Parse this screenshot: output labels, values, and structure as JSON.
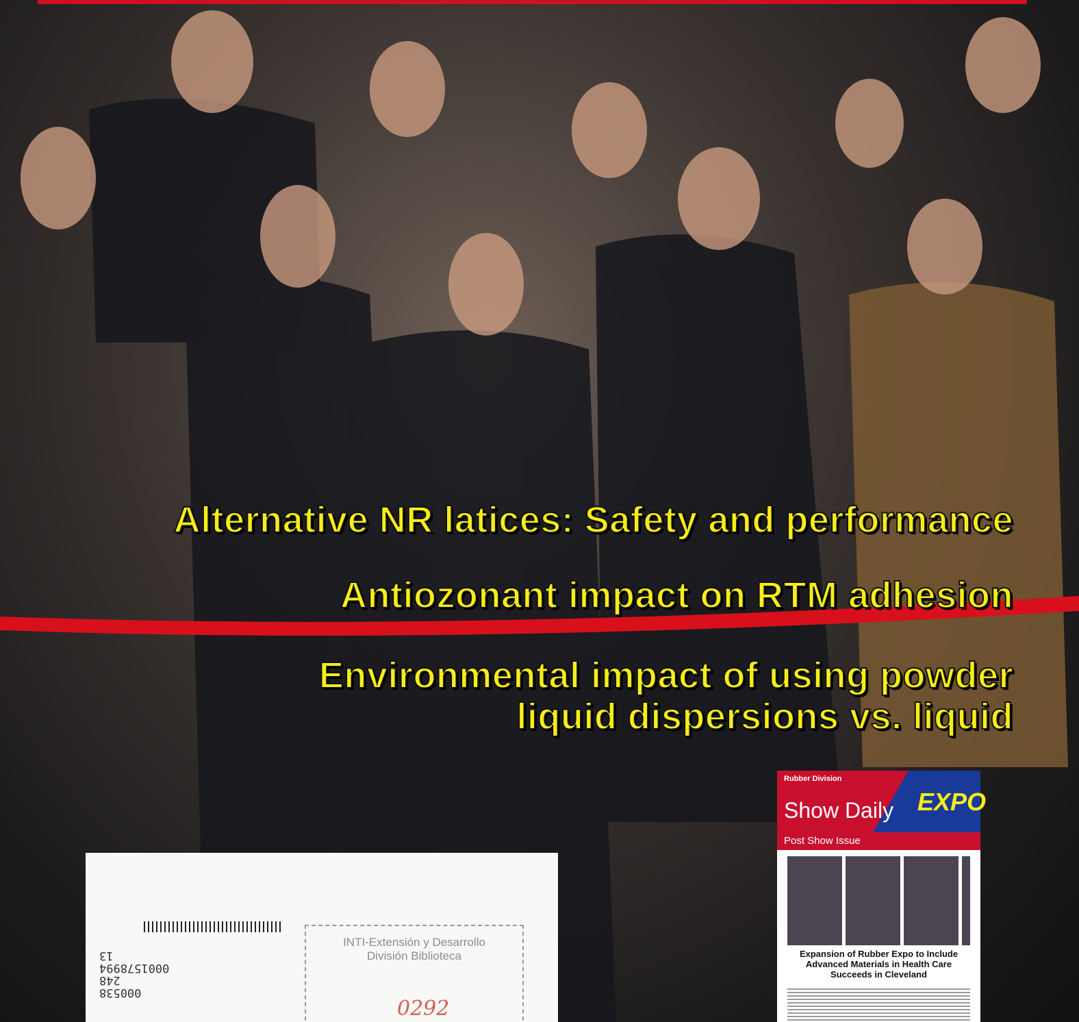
{
  "headlines": [
    "Alternative NR latices: Safety and performance",
    "Antiozonant impact on RTM adhesion",
    "Environmental impact of using powder",
    "liquid dispersions vs. liquid"
  ],
  "library_label": {
    "codes": [
      "13",
      "0001578994",
      "248",
      "000538"
    ],
    "stamp": [
      "INTI-Extensión y Desarrollo",
      "División Biblioteca"
    ],
    "handwritten": "0292"
  },
  "inset": {
    "brand": "Rubber Division",
    "title": "Show Daily",
    "expo": "EXPO",
    "issue": "Post Show Issue",
    "headline": "Expansion of Rubber Expo to Include Advanced Materials in Health Care Succeeds in Cleveland"
  }
}
